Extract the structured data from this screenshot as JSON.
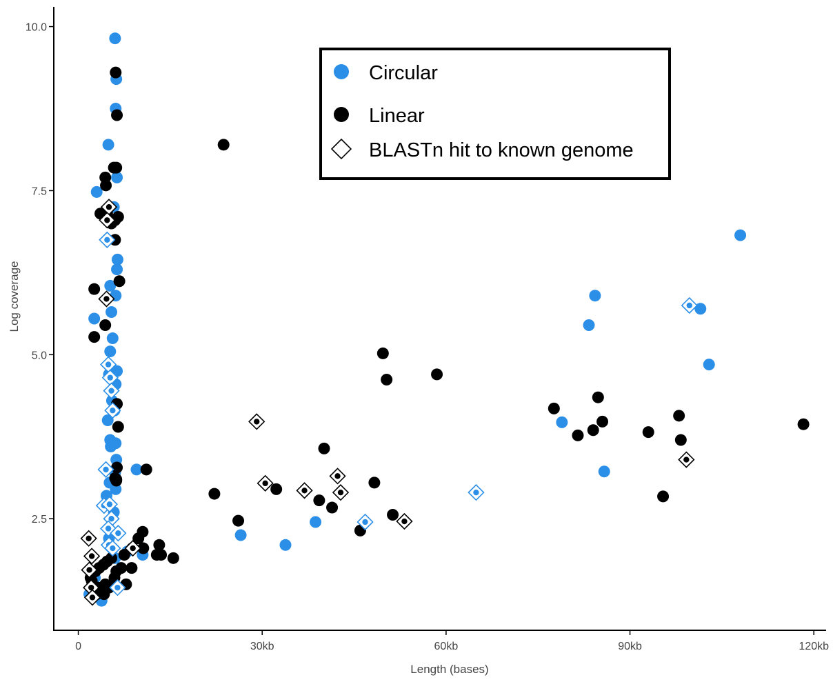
{
  "chart_data": {
    "type": "scatter",
    "title": "",
    "xlabel": "Length (bases)",
    "ylabel": "Log coverage",
    "xlim": [
      -4000,
      122000
    ],
    "ylim": [
      0.8,
      10.3
    ],
    "x_ticks": [
      {
        "value": 0,
        "label": "0"
      },
      {
        "value": 30000,
        "label": "30kb"
      },
      {
        "value": 60000,
        "label": "60kb"
      },
      {
        "value": 90000,
        "label": "90kb"
      },
      {
        "value": 120000,
        "label": "120kb"
      }
    ],
    "y_ticks": [
      {
        "value": 2.5,
        "label": "2.5"
      },
      {
        "value": 5.0,
        "label": "5.0"
      },
      {
        "value": 7.5,
        "label": "7.5"
      },
      {
        "value": 10.0,
        "label": "10.0"
      }
    ],
    "grid": false,
    "legend": {
      "position": "top-center",
      "entries": [
        {
          "label": "Circular",
          "marker": "filled-circle",
          "color": "#2b8fe8"
        },
        {
          "label": "Linear",
          "marker": "filled-circle",
          "color": "#000000"
        },
        {
          "label": "BLASTn hit to known genome",
          "marker": "open-diamond",
          "color": "#000000"
        }
      ]
    },
    "colors": {
      "circular": "#2b8fe8",
      "linear": "#000000",
      "diamond": "#000000"
    },
    "series": [
      {
        "name": "Circular",
        "points": [
          [
            6000,
            9.82
          ],
          [
            6200,
            9.2
          ],
          [
            6100,
            8.75
          ],
          [
            4900,
            8.2
          ],
          [
            6300,
            7.7
          ],
          [
            3000,
            7.48
          ],
          [
            5800,
            7.25
          ],
          [
            6400,
            6.45
          ],
          [
            6300,
            6.3
          ],
          [
            5200,
            6.05
          ],
          [
            6100,
            5.9
          ],
          [
            5400,
            5.65
          ],
          [
            2600,
            5.55
          ],
          [
            5600,
            5.25
          ],
          [
            5200,
            5.05
          ],
          [
            6300,
            4.75
          ],
          [
            5000,
            4.7
          ],
          [
            6100,
            4.55
          ],
          [
            5500,
            4.3
          ],
          [
            5900,
            4.15
          ],
          [
            4800,
            4.0
          ],
          [
            5200,
            3.7
          ],
          [
            6100,
            3.65
          ],
          [
            5300,
            3.6
          ],
          [
            6200,
            3.4
          ],
          [
            6000,
            3.2
          ],
          [
            5100,
            3.05
          ],
          [
            6100,
            2.95
          ],
          [
            4600,
            2.85
          ],
          [
            5800,
            2.6
          ],
          [
            9500,
            3.25
          ],
          [
            3800,
            1.25
          ],
          [
            2700,
            1.6
          ],
          [
            1800,
            1.35
          ],
          [
            6000,
            1.9
          ],
          [
            5000,
            2.2
          ],
          [
            10500,
            1.95
          ],
          [
            6400,
            1.45
          ],
          [
            8000,
            2.0
          ],
          [
            26500,
            2.25
          ],
          [
            33800,
            2.1
          ],
          [
            38700,
            2.45
          ],
          [
            78900,
            3.97
          ],
          [
            83300,
            5.45
          ],
          [
            84300,
            5.9
          ],
          [
            85800,
            3.22
          ],
          [
            101500,
            5.7
          ],
          [
            102900,
            4.85
          ],
          [
            108000,
            6.82
          ]
        ]
      },
      {
        "name": "Linear",
        "points": [
          [
            6100,
            9.3
          ],
          [
            6300,
            8.65
          ],
          [
            5800,
            7.85
          ],
          [
            6200,
            7.85
          ],
          [
            4400,
            7.7
          ],
          [
            4500,
            7.58
          ],
          [
            3600,
            7.15
          ],
          [
            4700,
            7.15
          ],
          [
            6000,
            7.05
          ],
          [
            6500,
            7.1
          ],
          [
            5400,
            7.0
          ],
          [
            6000,
            6.75
          ],
          [
            6700,
            6.12
          ],
          [
            2600,
            6.0
          ],
          [
            4400,
            5.45
          ],
          [
            2600,
            5.27
          ],
          [
            6300,
            4.25
          ],
          [
            6500,
            3.9
          ],
          [
            6300,
            3.28
          ],
          [
            6200,
            3.08
          ],
          [
            6000,
            3.12
          ],
          [
            6200,
            3.1
          ],
          [
            11100,
            3.25
          ],
          [
            2200,
            1.55
          ],
          [
            3200,
            1.45
          ],
          [
            3600,
            1.4
          ],
          [
            4200,
            1.35
          ],
          [
            2800,
            1.7
          ],
          [
            3400,
            1.75
          ],
          [
            4100,
            1.8
          ],
          [
            4700,
            1.85
          ],
          [
            5400,
            1.9
          ],
          [
            5900,
            1.6
          ],
          [
            5000,
            1.45
          ],
          [
            4400,
            1.5
          ],
          [
            2000,
            1.6
          ],
          [
            2400,
            1.45
          ],
          [
            3000,
            1.35
          ],
          [
            6200,
            1.7
          ],
          [
            7000,
            1.75
          ],
          [
            8700,
            1.75
          ],
          [
            7500,
            1.95
          ],
          [
            8800,
            2.05
          ],
          [
            9800,
            2.2
          ],
          [
            10600,
            2.05
          ],
          [
            10500,
            2.3
          ],
          [
            12800,
            1.95
          ],
          [
            13500,
            1.95
          ],
          [
            13200,
            2.1
          ],
          [
            15500,
            1.9
          ],
          [
            7800,
            1.5
          ],
          [
            23700,
            8.2
          ],
          [
            22200,
            2.88
          ],
          [
            26100,
            2.47
          ],
          [
            32300,
            2.95
          ],
          [
            39300,
            2.78
          ],
          [
            40100,
            3.57
          ],
          [
            41400,
            2.67
          ],
          [
            46000,
            2.32
          ],
          [
            48300,
            3.05
          ],
          [
            49700,
            5.02
          ],
          [
            50300,
            4.62
          ],
          [
            51300,
            2.56
          ],
          [
            58500,
            4.7
          ],
          [
            77600,
            4.18
          ],
          [
            81500,
            3.77
          ],
          [
            84000,
            3.85
          ],
          [
            84800,
            4.35
          ],
          [
            85500,
            3.98
          ],
          [
            93000,
            3.82
          ],
          [
            95400,
            2.84
          ],
          [
            98000,
            4.07
          ],
          [
            98300,
            3.7
          ],
          [
            118300,
            3.94
          ]
        ]
      },
      {
        "name": "BLASTn hit to known genome",
        "points": [
          [
            5000,
            7.25,
            "linear"
          ],
          [
            4700,
            7.05,
            "linear"
          ],
          [
            4700,
            6.75,
            "circular"
          ],
          [
            4600,
            5.85,
            "linear"
          ],
          [
            4900,
            4.85,
            "circular"
          ],
          [
            5200,
            4.65,
            "circular"
          ],
          [
            5400,
            4.45,
            "circular"
          ],
          [
            5600,
            4.15,
            "circular"
          ],
          [
            4500,
            3.25,
            "circular"
          ],
          [
            4200,
            2.7,
            "circular"
          ],
          [
            5100,
            2.72,
            "circular"
          ],
          [
            5400,
            2.5,
            "circular"
          ],
          [
            4900,
            2.35,
            "circular"
          ],
          [
            6500,
            2.28,
            "circular"
          ],
          [
            5000,
            2.1,
            "circular"
          ],
          [
            5600,
            2.05,
            "circular"
          ],
          [
            1700,
            2.2,
            "linear"
          ],
          [
            2200,
            1.93,
            "linear"
          ],
          [
            1800,
            1.72,
            "linear"
          ],
          [
            2100,
            1.45,
            "linear"
          ],
          [
            2300,
            1.3,
            "linear"
          ],
          [
            6400,
            1.45,
            "circular"
          ],
          [
            8900,
            2.05,
            "linear"
          ],
          [
            29100,
            3.98,
            "linear"
          ],
          [
            30500,
            3.04,
            "linear"
          ],
          [
            36900,
            2.93,
            "linear"
          ],
          [
            42300,
            3.15,
            "linear"
          ],
          [
            42800,
            2.9,
            "linear"
          ],
          [
            46800,
            2.45,
            "circular"
          ],
          [
            53200,
            2.46,
            "linear"
          ],
          [
            64900,
            2.9,
            "circular"
          ],
          [
            99200,
            3.4,
            "linear"
          ],
          [
            99700,
            5.75,
            "circular"
          ]
        ]
      }
    ]
  }
}
